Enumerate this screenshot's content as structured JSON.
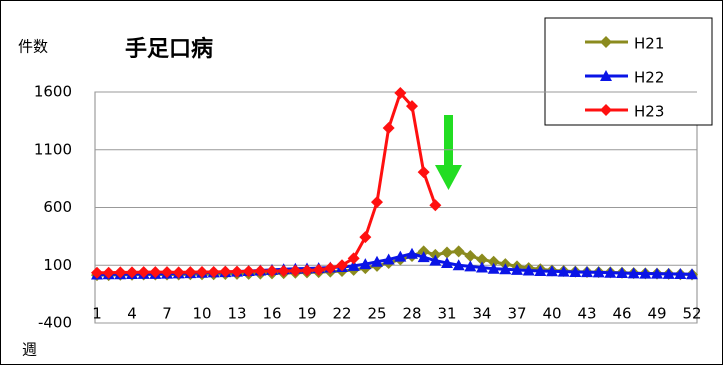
{
  "chart_data": {
    "type": "line",
    "title": "手足口病",
    "y_label": "件数",
    "x_label": "週",
    "categories": [
      1,
      null,
      null,
      4,
      null,
      null,
      7,
      null,
      null,
      10,
      null,
      null,
      13,
      null,
      null,
      16,
      null,
      null,
      19,
      null,
      null,
      22,
      null,
      null,
      25,
      null,
      null,
      28,
      null,
      null,
      31,
      null,
      null,
      34,
      null,
      null,
      37,
      null,
      null,
      40,
      null,
      null,
      43,
      null,
      null,
      46,
      null,
      null,
      49,
      null,
      null,
      52
    ],
    "ylim": [
      -400,
      1600
    ],
    "yticks": [
      -400,
      100,
      600,
      1100,
      1600
    ],
    "grid": true,
    "legend": "top-right",
    "series": [
      {
        "name": "H21",
        "color": "#8b8b1e",
        "marker": "diamond",
        "values": [
          15,
          15,
          18,
          18,
          20,
          20,
          20,
          20,
          22,
          22,
          22,
          24,
          25,
          25,
          28,
          30,
          32,
          35,
          38,
          40,
          45,
          50,
          60,
          75,
          95,
          120,
          150,
          180,
          220,
          190,
          210,
          220,
          180,
          150,
          130,
          110,
          90,
          75,
          65,
          55,
          50,
          45,
          42,
          40,
          38,
          35,
          32,
          30,
          28,
          25,
          22,
          20
        ]
      },
      {
        "name": "H22",
        "color": "#0a14e6",
        "marker": "triangle",
        "values": [
          20,
          22,
          22,
          24,
          25,
          25,
          28,
          30,
          32,
          35,
          38,
          40,
          45,
          50,
          55,
          60,
          65,
          70,
          72,
          75,
          80,
          85,
          95,
          110,
          130,
          150,
          175,
          200,
          170,
          140,
          120,
          100,
          90,
          80,
          70,
          65,
          60,
          55,
          50,
          48,
          45,
          42,
          40,
          38,
          35,
          33,
          30,
          28,
          27,
          25,
          24,
          22
        ]
      },
      {
        "name": "H23",
        "color": "#ff1010",
        "marker": "diamond",
        "values": [
          35,
          35,
          38,
          38,
          40,
          40,
          40,
          38,
          40,
          42,
          42,
          45,
          45,
          48,
          50,
          50,
          50,
          52,
          55,
          60,
          75,
          100,
          160,
          343,
          646,
          1288,
          1591,
          1478,
          906,
          620,
          null,
          null,
          null,
          null,
          null,
          null,
          null,
          null,
          null,
          null,
          null,
          null,
          null,
          null,
          null,
          null,
          null,
          null,
          null,
          null,
          null,
          null
        ]
      }
    ]
  }
}
